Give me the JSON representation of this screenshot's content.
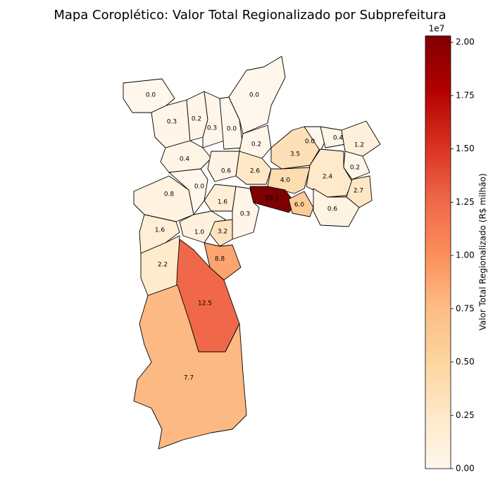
{
  "chart_data": {
    "type": "choropleth",
    "title": "Mapa Coroplético: Valor Total Regionalizado por Subprefeitura",
    "regions": {
      "values": [
        0.0,
        0.3,
        0.2,
        0.3,
        0.0,
        0.0,
        0.2,
        0.4,
        0.6,
        2.6,
        3.5,
        0.0,
        0.4,
        1.2,
        0.2,
        2.4,
        4.0,
        2.7,
        0.0,
        0.8,
        1.6,
        20.3,
        6.0,
        0.6,
        0.3,
        1.6,
        1.0,
        3.2,
        8.8,
        2.2,
        12.5,
        7.7
      ],
      "value_labels": [
        "0.0",
        "0.3",
        "0.2",
        "0.3",
        "0.0",
        "0.0",
        "0.2",
        "0.4",
        "0.6",
        "2.6",
        "3.5",
        "0.0",
        "0.4",
        "1.2",
        "0.2",
        "2.4",
        "4.0",
        "2.7",
        "0.0",
        "0.8",
        "1.6",
        "20.3",
        "6.0",
        "0.6",
        "0.3",
        "1.6",
        "1.0",
        "3.2",
        "8.8",
        "2.2",
        "12.5",
        "7.7"
      ]
    },
    "colorbar": {
      "label": "Valor Total Regionalizado (R$ milhão)",
      "offset_label": "1e7",
      "clim": [
        0,
        20.3
      ],
      "ticks": [
        {
          "value": 0,
          "label": "0.00"
        },
        {
          "value": 2.5,
          "label": "0.25"
        },
        {
          "value": 5,
          "label": "0.50"
        },
        {
          "value": 7.5,
          "label": "0.75"
        },
        {
          "value": 10,
          "label": "1.00"
        },
        {
          "value": 12.5,
          "label": "1.25"
        },
        {
          "value": 15,
          "label": "1.50"
        },
        {
          "value": 17.5,
          "label": "1.75"
        },
        {
          "value": 20,
          "label": "2.00"
        }
      ],
      "colormap": [
        "#fff7ec",
        "#fee8c8",
        "#fdd49e",
        "#fdbb84",
        "#fc8d59",
        "#ef6548",
        "#d7301f",
        "#b30000",
        "#7f0000"
      ]
    }
  }
}
